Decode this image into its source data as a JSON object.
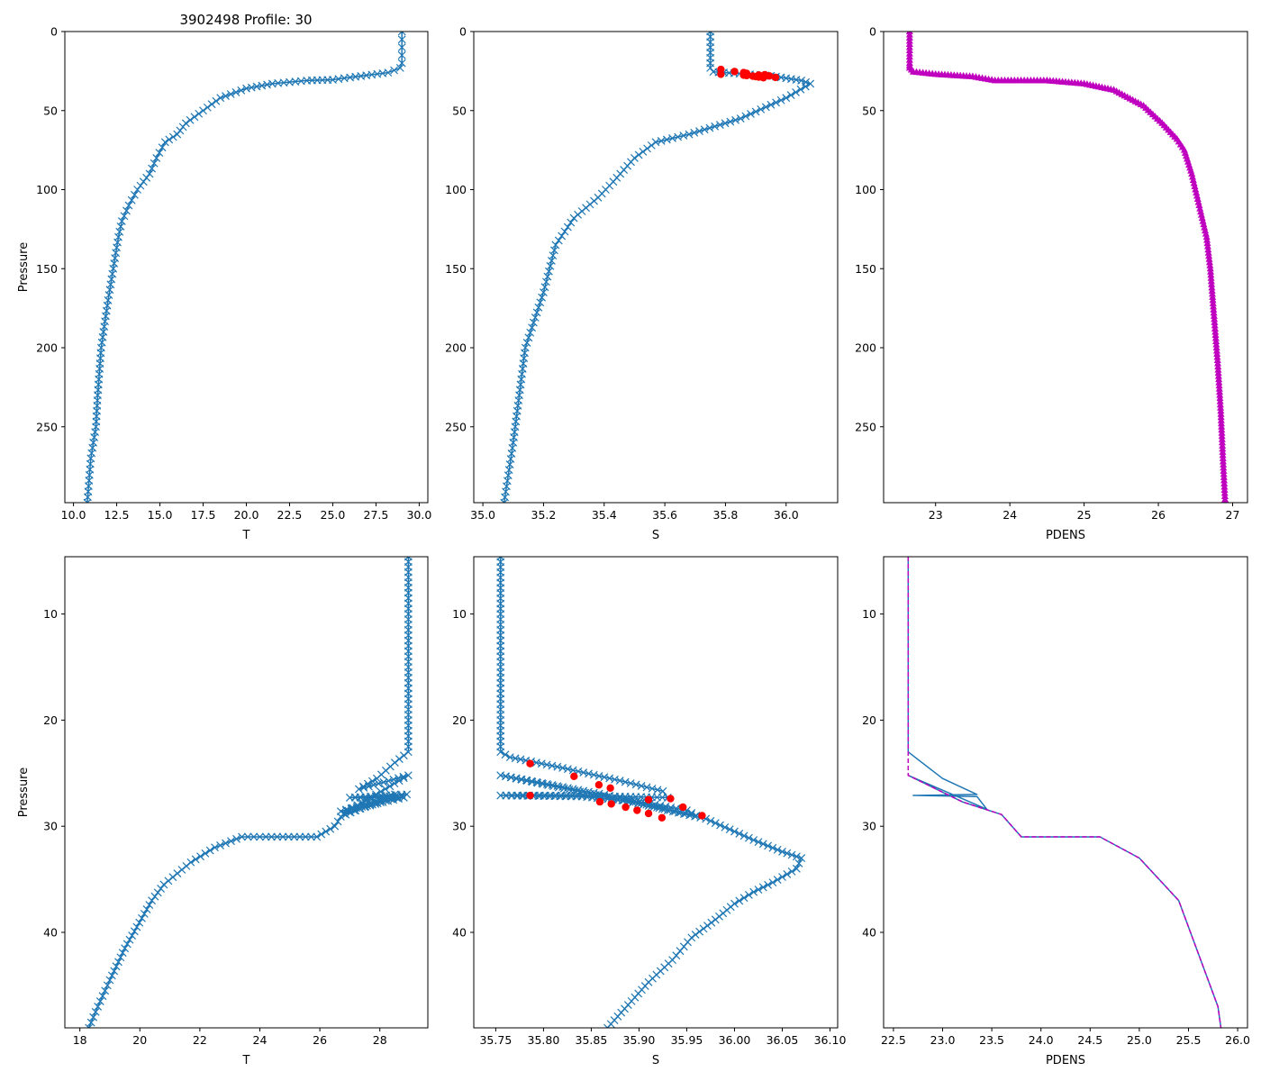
{
  "figure_title": "3902498 Profile: 30",
  "colors": {
    "profile": "#1f77b4",
    "flag": "#ff0000",
    "density": "#bf00bf"
  },
  "chart_data": [
    {
      "id": "temp-full",
      "type": "line",
      "marker": "x",
      "xlabel": "T",
      "ylabel": "Pressure",
      "y_inverted": true,
      "xlim": [
        9.5,
        30.5
      ],
      "ylim": [
        298,
        0
      ],
      "xticks": [
        10.0,
        12.5,
        15.0,
        17.5,
        20.0,
        22.5,
        25.0,
        27.5,
        30.0
      ],
      "xtick_labels": [
        "10.0",
        "12.5",
        "15.0",
        "17.5",
        "20.0",
        "22.5",
        "25.0",
        "27.5",
        "30.0"
      ],
      "yticks": [
        0,
        50,
        100,
        150,
        200,
        250
      ],
      "ytick_labels": [
        "0",
        "50",
        "100",
        "150",
        "200",
        "250"
      ],
      "series": [
        {
          "name": "T",
          "color_key": "profile",
          "points": [
            [
              29,
              0
            ],
            [
              29,
              5
            ],
            [
              29,
              10
            ],
            [
              29,
              15
            ],
            [
              29,
              20
            ],
            [
              28.9,
              23
            ],
            [
              28.2,
              26
            ],
            [
              26,
              29
            ],
            [
              25,
              30.5
            ],
            [
              23.5,
              31
            ],
            [
              21.5,
              33
            ],
            [
              20,
              36
            ],
            [
              18.5,
              42
            ],
            [
              17.5,
              50
            ],
            [
              16.5,
              58
            ],
            [
              16,
              65
            ],
            [
              15.3,
              70
            ],
            [
              14.8,
              80
            ],
            [
              14.4,
              90
            ],
            [
              13.7,
              100
            ],
            [
              13.2,
              110
            ],
            [
              12.8,
              120
            ],
            [
              12.6,
              130
            ],
            [
              12.3,
              150
            ],
            [
              12,
              170
            ],
            [
              11.6,
              200
            ],
            [
              11.4,
              230
            ],
            [
              11.3,
              250
            ],
            [
              11,
              270
            ],
            [
              10.8,
              298
            ]
          ]
        }
      ]
    },
    {
      "id": "sal-full",
      "type": "line",
      "marker": "x",
      "xlabel": "S",
      "ylabel": "",
      "y_inverted": true,
      "xlim": [
        34.97,
        36.17
      ],
      "ylim": [
        298,
        0
      ],
      "xticks": [
        35.0,
        35.2,
        35.4,
        35.6,
        35.8,
        36.0
      ],
      "xtick_labels": [
        "35.0",
        "35.2",
        "35.4",
        "35.6",
        "35.8",
        "36.0"
      ],
      "yticks": [
        0,
        50,
        100,
        150,
        200,
        250
      ],
      "ytick_labels": [
        "0",
        "50",
        "100",
        "150",
        "200",
        "250"
      ],
      "series": [
        {
          "name": "S",
          "color_key": "profile",
          "points": [
            [
              35.75,
              0
            ],
            [
              35.75,
              10
            ],
            [
              35.75,
              20
            ],
            [
              35.75,
              23
            ],
            [
              35.76,
              25.5
            ],
            [
              35.95,
              28
            ],
            [
              36.05,
              31
            ],
            [
              36.08,
              33
            ],
            [
              36.0,
              42
            ],
            [
              35.85,
              55
            ],
            [
              35.68,
              65
            ],
            [
              35.57,
              70
            ],
            [
              35.5,
              80
            ],
            [
              35.43,
              95
            ],
            [
              35.38,
              105
            ],
            [
              35.3,
              118
            ],
            [
              35.24,
              135
            ],
            [
              35.2,
              165
            ],
            [
              35.14,
              200
            ],
            [
              35.12,
              230
            ],
            [
              35.1,
              260
            ],
            [
              35.07,
              298
            ]
          ]
        },
        {
          "name": "flagged",
          "color_key": "flag",
          "mode": "dots",
          "points": [
            [
              35.785,
              24
            ],
            [
              35.785,
              27
            ],
            [
              35.83,
              25.3
            ],
            [
              35.86,
              26
            ],
            [
              35.87,
              26.5
            ],
            [
              35.93,
              27.3
            ],
            [
              35.91,
              27.5
            ],
            [
              35.86,
              27.6
            ],
            [
              35.87,
              27.9
            ],
            [
              35.89,
              28.2
            ],
            [
              35.9,
              28.5
            ],
            [
              35.945,
              28.1
            ],
            [
              35.91,
              28.8
            ],
            [
              35.925,
              29.2
            ],
            [
              35.965,
              29
            ]
          ]
        }
      ]
    },
    {
      "id": "dens-full",
      "type": "scatter",
      "marker": "triangle",
      "xlabel": "PDENS",
      "ylabel": "",
      "y_inverted": true,
      "xlim": [
        22.3,
        27.2
      ],
      "ylim": [
        298,
        0
      ],
      "xticks": [
        23,
        24,
        25,
        26,
        27
      ],
      "xtick_labels": [
        "23",
        "24",
        "25",
        "26",
        "27"
      ],
      "yticks": [
        0,
        50,
        100,
        150,
        200,
        250
      ],
      "ytick_labels": [
        "0",
        "50",
        "100",
        "150",
        "200",
        "250"
      ],
      "series": [
        {
          "name": "PDENS",
          "color_key": "density",
          "points": [
            [
              22.65,
              0
            ],
            [
              22.65,
              10
            ],
            [
              22.65,
              20
            ],
            [
              22.65,
              23
            ],
            [
              22.7,
              25.5
            ],
            [
              23.0,
              27
            ],
            [
              23.5,
              28.5
            ],
            [
              23.8,
              31
            ],
            [
              24.5,
              31
            ],
            [
              25.0,
              33
            ],
            [
              25.4,
              37
            ],
            [
              25.8,
              47
            ],
            [
              26.05,
              58
            ],
            [
              26.25,
              68
            ],
            [
              26.35,
              75
            ],
            [
              26.45,
              90
            ],
            [
              26.55,
              110
            ],
            [
              26.65,
              130
            ],
            [
              26.7,
              150
            ],
            [
              26.75,
              180
            ],
            [
              26.8,
              210
            ],
            [
              26.84,
              240
            ],
            [
              26.87,
              270
            ],
            [
              26.9,
              298
            ]
          ]
        }
      ]
    },
    {
      "id": "temp-zoom",
      "type": "line",
      "marker": "x",
      "xlabel": "T",
      "ylabel": "Pressure",
      "y_inverted": true,
      "xlim": [
        17.5,
        29.6
      ],
      "ylim": [
        49,
        4.6
      ],
      "xticks": [
        18,
        20,
        22,
        24,
        26,
        28
      ],
      "xtick_labels": [
        "18",
        "20",
        "22",
        "24",
        "26",
        "28"
      ],
      "yticks": [
        10,
        20,
        30,
        40
      ],
      "ytick_labels": [
        "10",
        "20",
        "30",
        "40"
      ],
      "series": [
        {
          "name": "T",
          "color_key": "profile",
          "points": [
            [
              28.95,
              4.6
            ],
            [
              28.95,
              8
            ],
            [
              28.95,
              12
            ],
            [
              28.95,
              16
            ],
            [
              28.95,
              20
            ],
            [
              28.95,
              23
            ],
            [
              28.5,
              24
            ],
            [
              27.9,
              25.5
            ],
            [
              27.3,
              26.5
            ],
            [
              28.95,
              25.2
            ],
            [
              26.8,
              28.8
            ],
            [
              28.9,
              27
            ],
            [
              27,
              27.3
            ],
            [
              28.8,
              27.3
            ],
            [
              26.7,
              28.6
            ],
            [
              28.5,
              27
            ],
            [
              26.7,
              29.1
            ],
            [
              26.5,
              30
            ],
            [
              25.9,
              31
            ],
            [
              24.2,
              31
            ],
            [
              23.4,
              31
            ],
            [
              22.5,
              32
            ],
            [
              21.7,
              33.4
            ],
            [
              20.8,
              35.5
            ],
            [
              20.4,
              37
            ],
            [
              19.9,
              39.5
            ],
            [
              19.5,
              41.5
            ],
            [
              19.0,
              44.5
            ],
            [
              18.6,
              47
            ],
            [
              18.3,
              49
            ]
          ]
        }
      ]
    },
    {
      "id": "sal-zoom",
      "type": "line",
      "marker": "x",
      "xlabel": "S",
      "ylabel": "",
      "y_inverted": true,
      "xlim": [
        35.727,
        36.108
      ],
      "ylim": [
        49,
        4.6
      ],
      "xticks": [
        35.75,
        35.8,
        35.85,
        35.9,
        35.95,
        36.0,
        36.05,
        36.1
      ],
      "xtick_labels": [
        "35.75",
        "35.80",
        "35.85",
        "35.90",
        "35.95",
        "36.00",
        "36.05",
        "36.10"
      ],
      "yticks": [
        10,
        20,
        30,
        40
      ],
      "ytick_labels": [
        "10",
        "20",
        "30",
        "40"
      ],
      "series": [
        {
          "name": "S",
          "color_key": "profile",
          "points": [
            [
              35.755,
              4.6
            ],
            [
              35.755,
              10
            ],
            [
              35.755,
              15
            ],
            [
              35.755,
              20
            ],
            [
              35.755,
              23
            ],
            [
              35.765,
              23.5
            ],
            [
              35.82,
              24.5
            ],
            [
              35.88,
              25.7
            ],
            [
              35.925,
              26.7
            ],
            [
              35.93,
              27.3
            ],
            [
              35.88,
              27.2
            ],
            [
              35.83,
              27.1
            ],
            [
              35.785,
              27.1
            ],
            [
              35.755,
              27.1
            ],
            [
              35.84,
              27.2
            ],
            [
              35.9,
              27.7
            ],
            [
              35.95,
              28.5
            ],
            [
              35.96,
              29
            ],
            [
              35.755,
              25.2
            ],
            [
              35.82,
              26.3
            ],
            [
              35.88,
              27.3
            ],
            [
              35.93,
              28.5
            ],
            [
              35.97,
              29.3
            ],
            [
              36.0,
              30.5
            ],
            [
              36.02,
              31.3
            ],
            [
              36.05,
              32.4
            ],
            [
              36.07,
              33
            ],
            [
              36.065,
              34
            ],
            [
              36.04,
              35.3
            ],
            [
              36.02,
              36.2
            ],
            [
              36.0,
              37.3
            ],
            [
              35.98,
              38.8
            ],
            [
              35.955,
              40.5
            ],
            [
              35.935,
              42.6
            ],
            [
              35.91,
              44.7
            ],
            [
              35.885,
              47.2
            ],
            [
              35.867,
              49
            ]
          ]
        },
        {
          "name": "flagged",
          "color_key": "flag",
          "mode": "dots",
          "points": [
            [
              35.786,
              24.1
            ],
            [
              35.832,
              25.3
            ],
            [
              35.858,
              26.1
            ],
            [
              35.87,
              26.4
            ],
            [
              35.933,
              27.4
            ],
            [
              35.91,
              27.5
            ],
            [
              35.786,
              27.1
            ],
            [
              35.859,
              27.7
            ],
            [
              35.871,
              27.9
            ],
            [
              35.886,
              28.2
            ],
            [
              35.898,
              28.5
            ],
            [
              35.946,
              28.2
            ],
            [
              35.91,
              28.8
            ],
            [
              35.924,
              29.2
            ],
            [
              35.966,
              29.0
            ]
          ]
        }
      ]
    },
    {
      "id": "dens-zoom",
      "type": "line",
      "marker": "none",
      "xlabel": "PDENS",
      "ylabel": "",
      "y_inverted": true,
      "xlim": [
        22.4,
        26.1
      ],
      "ylim": [
        49,
        4.6
      ],
      "xticks": [
        22.5,
        23.0,
        23.5,
        24.0,
        24.5,
        25.0,
        25.5,
        26.0
      ],
      "xtick_labels": [
        "22.5",
        "23.0",
        "23.5",
        "24.0",
        "24.5",
        "25.0",
        "25.5",
        "26.0"
      ],
      "yticks": [
        10,
        20,
        30,
        40
      ],
      "ytick_labels": [
        "10",
        "20",
        "30",
        "40"
      ],
      "series": [
        {
          "name": "PDENS",
          "color_key": "profile",
          "points": [
            [
              22.65,
              4.6
            ],
            [
              22.65,
              10
            ],
            [
              22.65,
              23
            ],
            [
              23.0,
              25.5
            ],
            [
              23.35,
              27.0
            ],
            [
              22.7,
              27.1
            ],
            [
              23.35,
              27.2
            ],
            [
              23.45,
              28.4
            ],
            [
              22.65,
              25.2
            ],
            [
              23.2,
              27.7
            ],
            [
              23.6,
              28.9
            ],
            [
              23.8,
              31.0
            ],
            [
              24.6,
              31.0
            ],
            [
              25.0,
              33.0
            ],
            [
              25.4,
              37.0
            ],
            [
              25.8,
              47.0
            ],
            [
              25.83,
              49
            ]
          ]
        },
        {
          "name": "PDENS-overlay",
          "color_key": "density",
          "mode": "dashed",
          "points": [
            [
              22.65,
              4.6
            ],
            [
              22.65,
              10
            ],
            [
              22.65,
              23
            ],
            [
              22.65,
              25.2
            ],
            [
              23.2,
              27.7
            ],
            [
              23.6,
              28.9
            ],
            [
              23.8,
              31.0
            ],
            [
              24.6,
              31.0
            ],
            [
              25.0,
              33.0
            ],
            [
              25.4,
              37.0
            ],
            [
              25.8,
              47.0
            ],
            [
              25.83,
              49
            ]
          ]
        }
      ]
    }
  ]
}
